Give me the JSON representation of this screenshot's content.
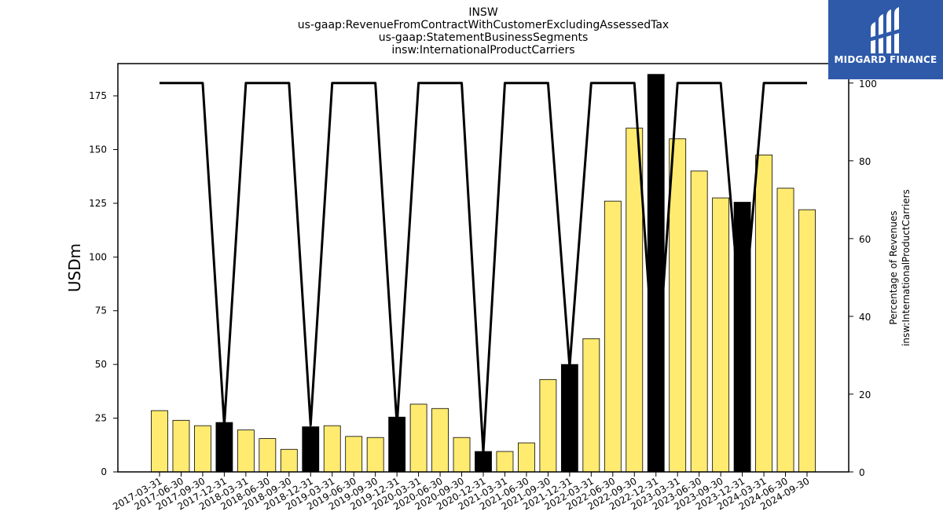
{
  "chart_data": {
    "type": "bar",
    "title_lines": [
      "INSW",
      "us-gaap:RevenueFromContractWithCustomerExcludingAssessedTax",
      "us-gaap:StatementBusinessSegments",
      "insw:InternationalProductCarriers"
    ],
    "ylabel": "USDm",
    "y2label_lines": [
      "Percentage of Revenues",
      "insw:InternationalProductCarriers"
    ],
    "ylim": [
      0,
      190
    ],
    "y2lim": [
      0,
      105
    ],
    "yticks": [
      0,
      25,
      50,
      75,
      100,
      125,
      150,
      175
    ],
    "y2ticks": [
      0,
      20,
      40,
      60,
      80,
      100
    ],
    "categories": [
      "2017-03-31",
      "2017-06-30",
      "2017-09-30",
      "2017-12-31",
      "2018-03-31",
      "2018-06-30",
      "2018-09-30",
      "2018-12-31",
      "2019-03-31",
      "2019-06-30",
      "2019-09-30",
      "2019-12-31",
      "2020-03-31",
      "2020-06-30",
      "2020-09-30",
      "2020-12-31",
      "2021-03-31",
      "2021-06-30",
      "2021-09-30",
      "2021-12-31",
      "2022-03-31",
      "2022-06-30",
      "2022-09-30",
      "2022-12-31",
      "2023-03-31",
      "2023-06-30",
      "2023-09-30",
      "2023-12-31",
      "2024-03-31",
      "2024-06-30",
      "2024-09-30"
    ],
    "series": [
      {
        "type": "bar",
        "values": [
          28.5,
          24,
          21.5,
          23,
          19.5,
          15.5,
          10.5,
          21,
          21.5,
          16.5,
          16,
          25.5,
          31.5,
          29.5,
          16,
          9.5,
          9.5,
          13.5,
          43,
          50,
          62,
          126,
          160,
          185,
          155,
          140,
          127.5,
          125.5,
          147.5,
          132,
          122
        ],
        "highlight": [
          false,
          false,
          false,
          true,
          false,
          false,
          false,
          true,
          false,
          false,
          false,
          true,
          false,
          false,
          false,
          true,
          false,
          false,
          false,
          true,
          false,
          false,
          false,
          true,
          false,
          false,
          false,
          true,
          false,
          false,
          false
        ]
      },
      {
        "type": "line",
        "axis": "y2",
        "values": [
          100,
          100,
          100,
          12,
          100,
          100,
          100,
          12,
          100,
          100,
          100,
          12,
          100,
          100,
          100,
          5,
          100,
          100,
          100,
          27,
          100,
          100,
          100,
          20,
          100,
          100,
          100,
          35,
          100,
          100,
          100
        ]
      }
    ],
    "colors": {
      "bar": "#ffeb70",
      "highlight_bar": "#000000",
      "line": "#000000"
    },
    "grid": false
  },
  "logo": {
    "text": "MIDGARD FINANCE",
    "bg_color": "#2f5aaa"
  }
}
